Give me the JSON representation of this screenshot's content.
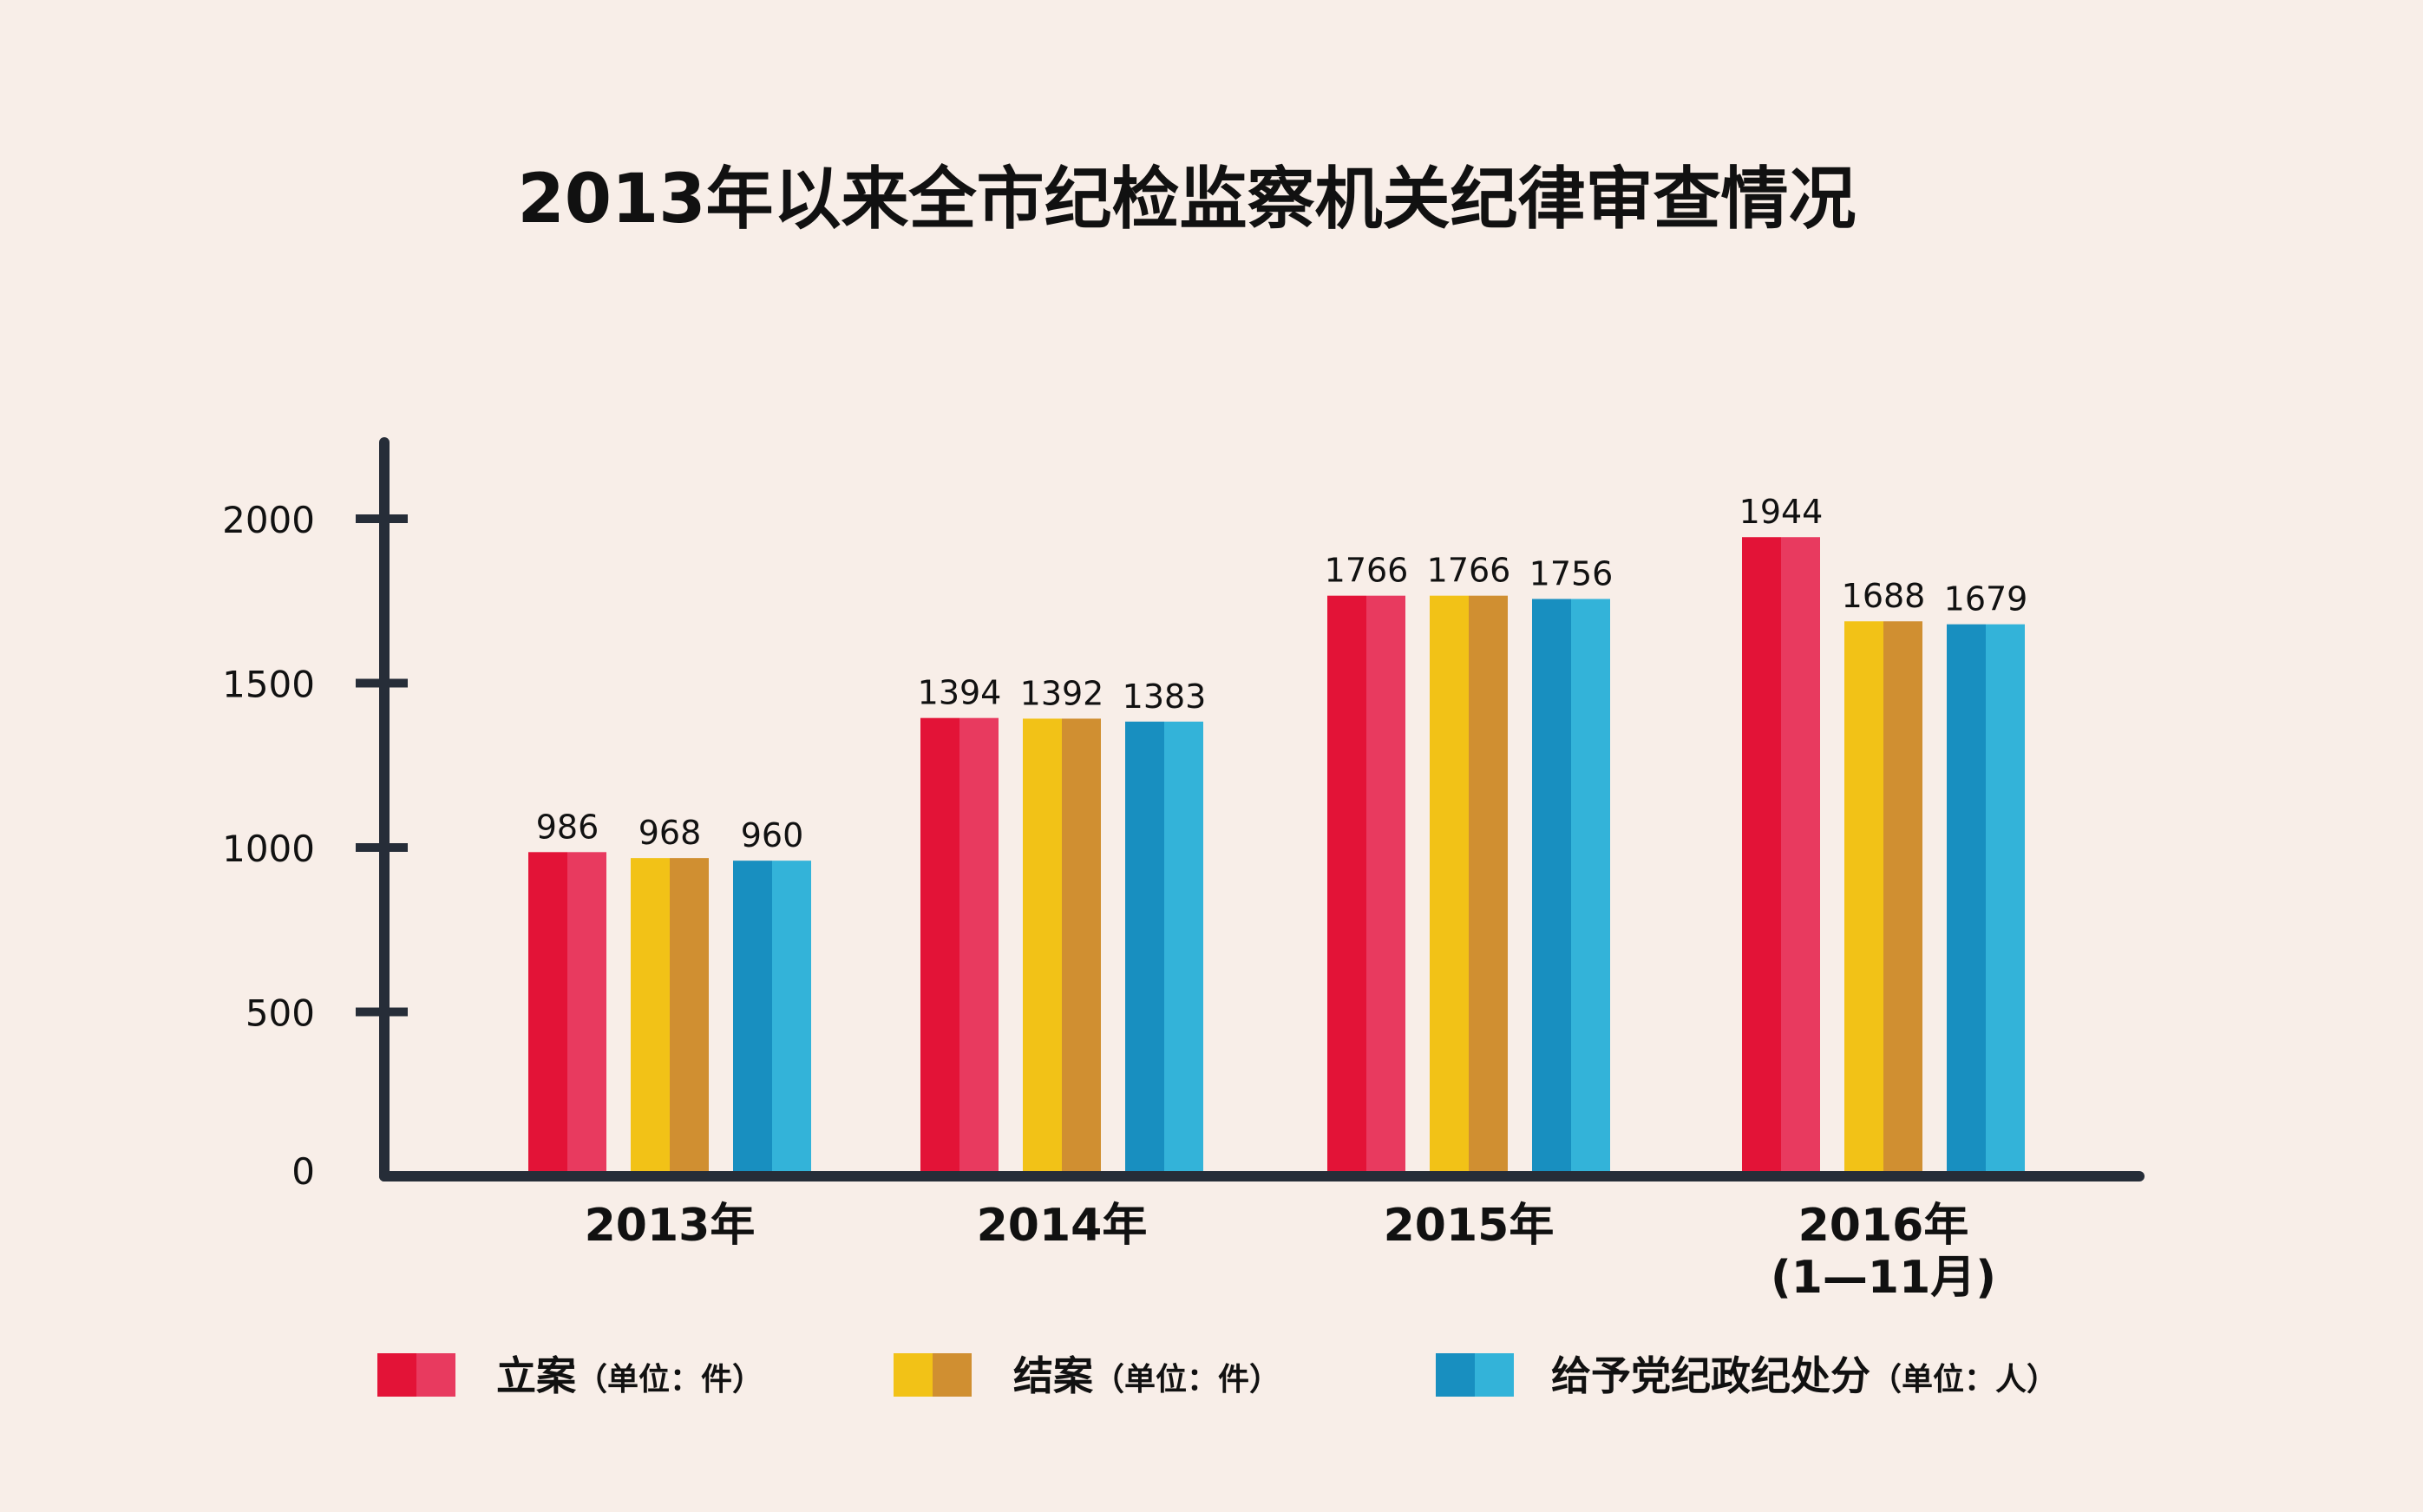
{
  "chart_data": {
    "type": "bar",
    "title": "2013年以来全市纪检监察机关纪律审查情况",
    "categories": [
      "2013年",
      "2014年",
      "2015年",
      "2016年\n(1—11月)"
    ],
    "series": [
      {
        "name": "立案",
        "unit": "（单位：件）",
        "values": [
          986,
          1394,
          1766,
          1944
        ]
      },
      {
        "name": "结案",
        "unit": "（单位：件）",
        "values": [
          968,
          1392,
          1766,
          1688
        ]
      },
      {
        "name": "给予党纪政纪处分",
        "unit": "（单位：人）",
        "values": [
          960,
          1383,
          1756,
          1679
        ]
      }
    ],
    "yticks": [
      0,
      500,
      1000,
      1500,
      2000
    ],
    "ylim": [
      0,
      2200
    ],
    "legend_position": "bottom",
    "grid": false
  },
  "colors": {
    "background": "#f8eee8",
    "axis": "#262d38",
    "series": [
      {
        "dark": "#e31337",
        "light": "#e83a5f"
      },
      {
        "dark": "#f2c217",
        "light": "#d08f31"
      },
      {
        "dark": "#188fc0",
        "light": "#33b3d9"
      }
    ]
  }
}
